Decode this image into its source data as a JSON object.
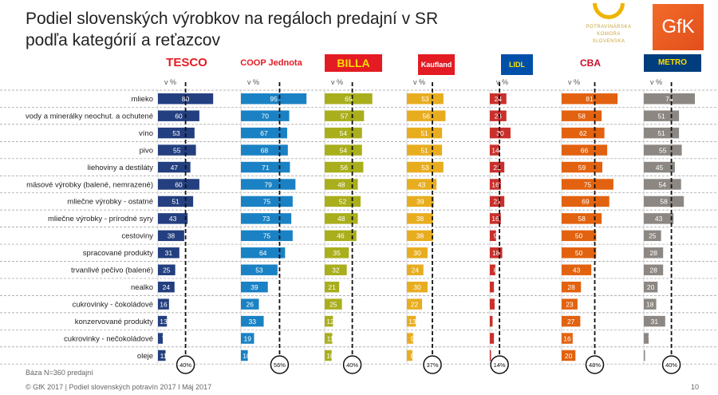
{
  "title": "Podiel slovenských výrobkov na regáloch predajní v SR podľa kategórií a reťazcov",
  "logos": {
    "potravinarska": "POTRAVINÁRSKA KOMORA SLOVENSKA",
    "gfk": "GfK"
  },
  "footer": {
    "base": "Báza N=360 predajní",
    "copyright": "© GfK 2017 | Podiel slovenských potravín 2017 I Máj 2017",
    "page": "10"
  },
  "chart_data": {
    "type": "bar",
    "orientation": "horizontal",
    "unit_label": "v %",
    "categories": [
      "mlieko",
      "vody a minerálky neochut. a ochutené",
      "víno",
      "pivo",
      "liehoviny a destiláty",
      "mäsové výrobky (balené, nemrazené)",
      "mliečne výrobky - ostatné",
      "mliečne výrobky - prírodné syry",
      "cestoviny",
      "spracované produkty",
      "trvanlivé pečivo (balené)",
      "nealko",
      "cukrovinky - čokoládové",
      "konzervované produkty",
      "cukrovinky - nečokoládové",
      "oleje"
    ],
    "series": [
      {
        "name": "TESCO",
        "color": "#233f7f",
        "average": "40%",
        "average_value": 40,
        "values": [
          80,
          60,
          53,
          55,
          47,
          60,
          51,
          43,
          38,
          31,
          25,
          24,
          16,
          13,
          7,
          11
        ]
      },
      {
        "name": "COOP Jednota",
        "color": "#1a82c4",
        "average": "56%",
        "average_value": 56,
        "values": [
          95,
          70,
          67,
          68,
          71,
          79,
          75,
          73,
          75,
          64,
          53,
          39,
          26,
          33,
          19,
          10
        ]
      },
      {
        "name": "BILLA",
        "color": "#a9ae1c",
        "average": "40%",
        "average_value": 40,
        "values": [
          69,
          57,
          54,
          54,
          56,
          48,
          52,
          48,
          46,
          35,
          32,
          21,
          25,
          12,
          11,
          10
        ]
      },
      {
        "name": "Kaufland",
        "color": "#e8ad1f",
        "average": "37%",
        "average_value": 37,
        "values": [
          53,
          56,
          51,
          51,
          53,
          43,
          39,
          38,
          38,
          30,
          24,
          30,
          22,
          13,
          9,
          8
        ]
      },
      {
        "name": "LIDL",
        "color": "#c9302c",
        "average": "14%",
        "average_value": 14,
        "values": [
          24,
          24,
          30,
          14,
          21,
          16,
          21,
          16,
          9,
          18,
          8,
          6,
          7,
          4,
          6,
          1
        ]
      },
      {
        "name": "CBA",
        "color": "#e2620f",
        "average": "48%",
        "average_value": 48,
        "values": [
          81,
          58,
          62,
          66,
          59,
          75,
          69,
          58,
          50,
          50,
          43,
          28,
          23,
          27,
          16,
          20
        ]
      },
      {
        "name": "METRO",
        "color": "#8c8782",
        "average": "40%",
        "average_value": 40,
        "values": [
          74,
          51,
          51,
          55,
          45,
          54,
          58,
          43,
          25,
          28,
          28,
          20,
          18,
          31,
          7,
          1
        ]
      }
    ]
  }
}
